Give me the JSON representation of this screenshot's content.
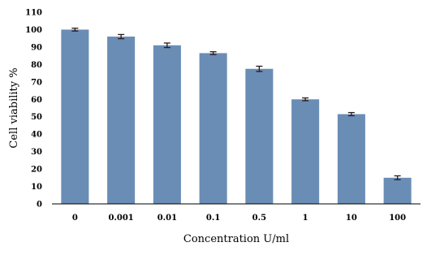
{
  "chart_data": {
    "type": "bar",
    "title": "",
    "xlabel": "Concentration U/ml",
    "ylabel": "Cell viability %",
    "categories": [
      "0",
      "0.001",
      "0.01",
      "0.1",
      "0.5",
      "1",
      "10",
      "100"
    ],
    "values": [
      100,
      96,
      91,
      86.5,
      77.5,
      60,
      51.5,
      15
    ],
    "errors": [
      0.8,
      1.2,
      1.3,
      0.8,
      1.5,
      0.8,
      0.9,
      1.1
    ],
    "ylim": [
      0,
      110
    ],
    "yticks": [
      0,
      10,
      20,
      30,
      40,
      50,
      60,
      70,
      80,
      90,
      100,
      110
    ],
    "grid": false,
    "legend": "none",
    "colors": {
      "bar": "#6a8db5",
      "error": "#2a1a1a"
    }
  }
}
